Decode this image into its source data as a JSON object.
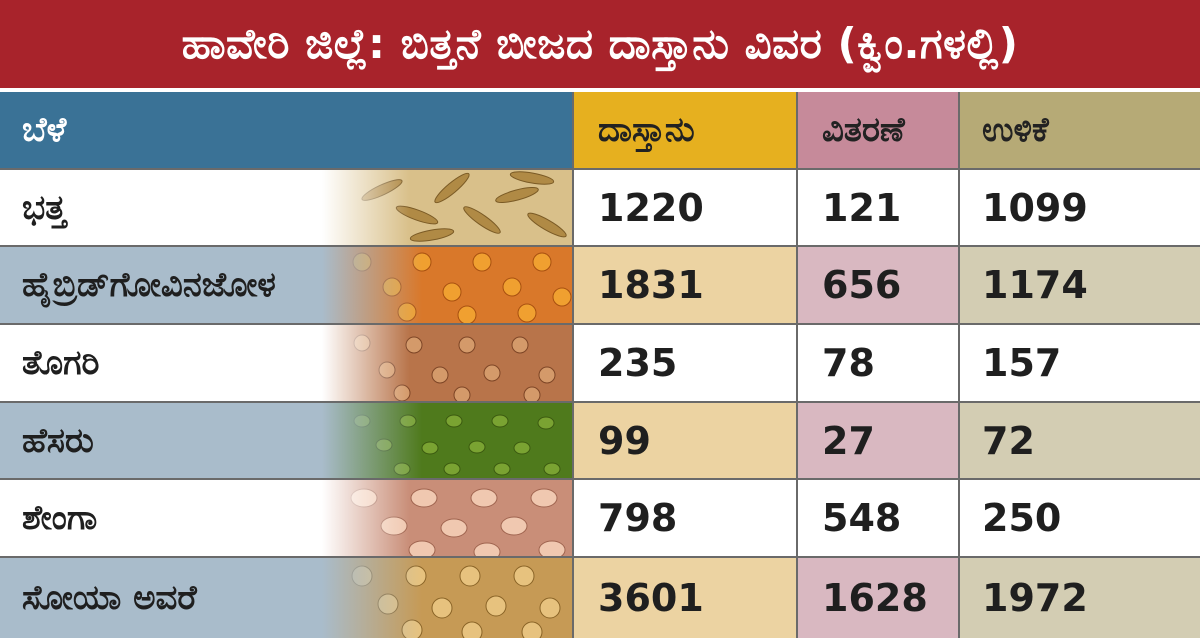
{
  "title": "ಹಾವೇರಿ ಜಿಲ್ಲೆ: ಬಿತ್ತನೆ ಬೀಜದ ದಾಸ್ತಾನು ವಿವರ (ಕ್ವಿಂ.ಗಳಲ್ಲಿ)",
  "headers": [
    "ಬೆಳೆ",
    "ದಾಸ್ತಾನು",
    "ವಿತರಣೆ",
    "ಉಳಿಕೆ"
  ],
  "rows": [
    {
      "crop": "ಭತ್ತ",
      "stock": "1220",
      "distributed": "121",
      "balance": "1099"
    },
    {
      "crop": "ಹೈಬ್ರಿಡ್‌ಗೋವಿನಜೋಳ",
      "stock": "1831",
      "distributed": "656",
      "balance": "1174"
    },
    {
      "crop": "ತೊಗರಿ",
      "stock": "235",
      "distributed": "78",
      "balance": "157"
    },
    {
      "crop": "ಹೆಸರು",
      "stock": "99",
      "distributed": "27",
      "balance": "72"
    },
    {
      "crop": "ಶೇಂಗಾ",
      "stock": "798",
      "distributed": "548",
      "balance": "250"
    },
    {
      "crop": "ಸೋಯಾ ಅವರೆ",
      "stock": "3601",
      "distributed": "1628",
      "balance": "1972"
    }
  ],
  "colors": {
    "title_bg": "#a8232b",
    "header_crop": "#3a7296",
    "header_stock": "#e6b01f",
    "header_distributed": "#c68a9a",
    "header_balance": "#b6aa76"
  },
  "grain_icons": [
    "rice-grain-image",
    "maize-grain-image",
    "pigeon-pea-image",
    "green-gram-image",
    "groundnut-image",
    "soybean-image"
  ]
}
